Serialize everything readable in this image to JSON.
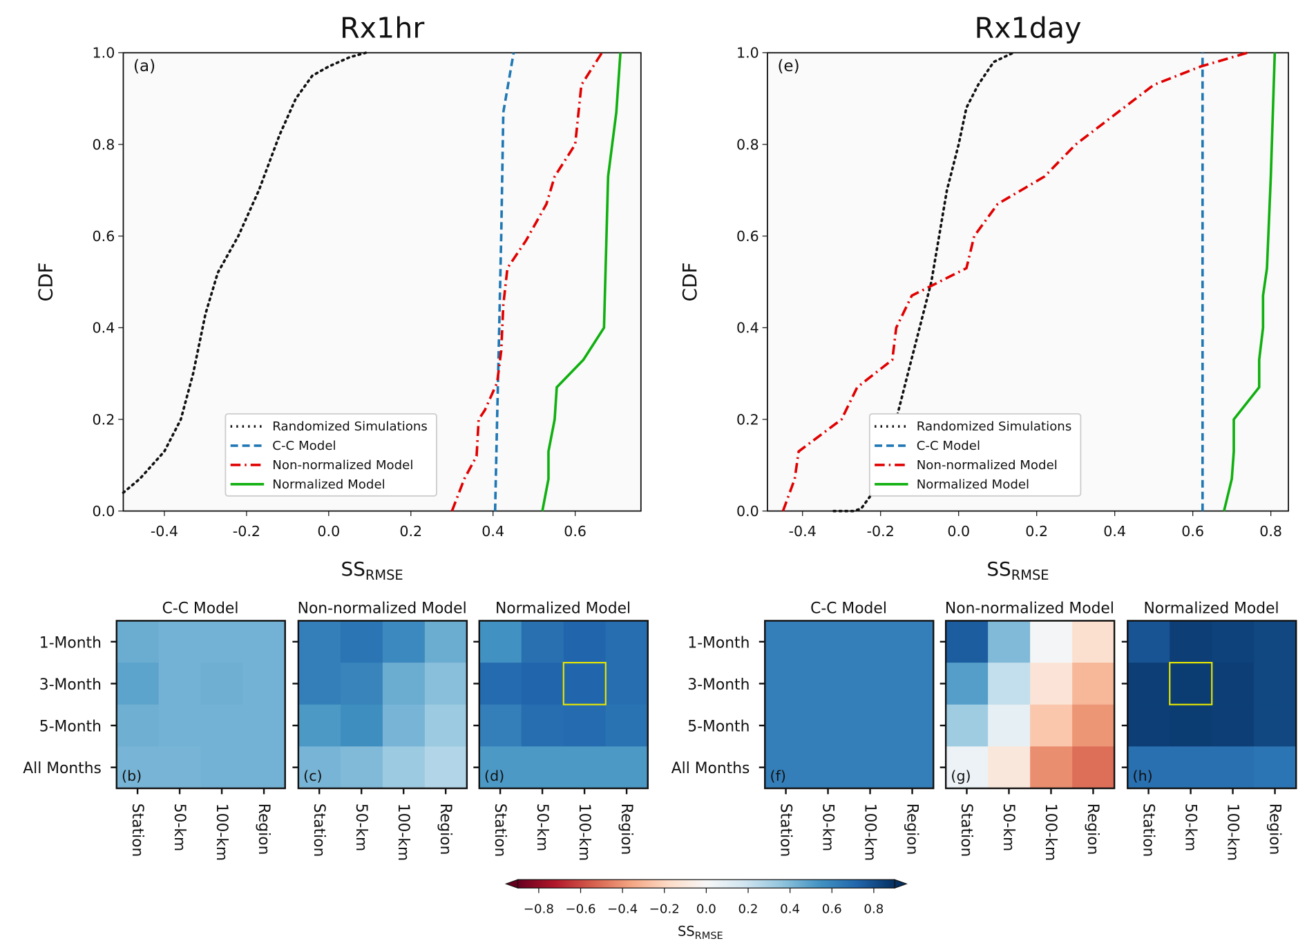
{
  "colors": {
    "Randomized Simulations": "#111111",
    "C-C Model": "#1f77b4",
    "Non-normalized Model": "#e00000",
    "Normalized Model": "#10b010",
    "highlight": "#e6e600",
    "axes_bg": "#fafafa"
  },
  "chart_data": [
    {
      "type": "line",
      "title": "Rx1hr",
      "panel_label": "(a)",
      "xlabel": "SS",
      "xlabel_sub": "RMSE",
      "ylabel": "CDF",
      "xlim": [
        -0.5,
        0.76
      ],
      "ylim": [
        0,
        1
      ],
      "xticks": [
        "-0.4",
        "-0.2",
        "0.0",
        "0.2",
        "0.4",
        "0.6"
      ],
      "yticks": [
        "0.0",
        "0.2",
        "0.4",
        "0.6",
        "0.8",
        "1.0"
      ],
      "legend": "lower-center",
      "series": [
        {
          "name": "Randomized Simulations",
          "style": "dotted",
          "points": [
            [
              -0.5,
              0.04
            ],
            [
              -0.46,
              0.07
            ],
            [
              -0.4,
              0.13
            ],
            [
              -0.36,
              0.2
            ],
            [
              -0.33,
              0.3
            ],
            [
              -0.3,
              0.43
            ],
            [
              -0.27,
              0.52
            ],
            [
              -0.22,
              0.6
            ],
            [
              -0.17,
              0.7
            ],
            [
              -0.12,
              0.82
            ],
            [
              -0.08,
              0.9
            ],
            [
              -0.04,
              0.95
            ],
            [
              0.0,
              0.97
            ],
            [
              0.05,
              0.99
            ],
            [
              0.09,
              1.0
            ]
          ]
        },
        {
          "name": "C-C Model",
          "style": "dashed",
          "points": [
            [
              0.405,
              0
            ],
            [
              0.41,
              0.2
            ],
            [
              0.415,
              0.4
            ],
            [
              0.42,
              0.6
            ],
            [
              0.425,
              0.87
            ],
            [
              0.45,
              1.0
            ]
          ]
        },
        {
          "name": "Non-normalized Model",
          "style": "dashdot",
          "points": [
            [
              0.3,
              0
            ],
            [
              0.33,
              0.07
            ],
            [
              0.36,
              0.12
            ],
            [
              0.365,
              0.2
            ],
            [
              0.38,
              0.22
            ],
            [
              0.41,
              0.28
            ],
            [
              0.42,
              0.35
            ],
            [
              0.425,
              0.45
            ],
            [
              0.435,
              0.53
            ],
            [
              0.48,
              0.59
            ],
            [
              0.53,
              0.67
            ],
            [
              0.55,
              0.73
            ],
            [
              0.6,
              0.8
            ],
            [
              0.615,
              0.93
            ],
            [
              0.665,
              1.0
            ]
          ]
        },
        {
          "name": "Normalized Model",
          "style": "solid",
          "points": [
            [
              0.52,
              0
            ],
            [
              0.535,
              0.07
            ],
            [
              0.535,
              0.13
            ],
            [
              0.55,
              0.2
            ],
            [
              0.555,
              0.27
            ],
            [
              0.62,
              0.33
            ],
            [
              0.67,
              0.4
            ],
            [
              0.68,
              0.73
            ],
            [
              0.69,
              0.8
            ],
            [
              0.7,
              0.87
            ],
            [
              0.71,
              1.0
            ]
          ]
        }
      ]
    },
    {
      "type": "line",
      "title": "Rx1day",
      "panel_label": "(e)",
      "xlabel": "SS",
      "xlabel_sub": "RMSE",
      "ylabel": "CDF",
      "xlim": [
        -0.49,
        0.845
      ],
      "ylim": [
        0,
        1
      ],
      "xticks": [
        "-0.4",
        "-0.2",
        "0.0",
        "0.2",
        "0.4",
        "0.6",
        "0.8"
      ],
      "yticks": [
        "0.0",
        "0.2",
        "0.4",
        "0.6",
        "0.8",
        "1.0"
      ],
      "legend": "lower-center",
      "series": [
        {
          "name": "Randomized Simulations",
          "style": "dotted",
          "points": [
            [
              -0.32,
              0
            ],
            [
              -0.27,
              0
            ],
            [
              -0.25,
              0.005
            ],
            [
              -0.22,
              0.04
            ],
            [
              -0.19,
              0.1
            ],
            [
              -0.16,
              0.2
            ],
            [
              -0.13,
              0.3
            ],
            [
              -0.1,
              0.4
            ],
            [
              -0.07,
              0.5
            ],
            [
              -0.05,
              0.6
            ],
            [
              -0.03,
              0.7
            ],
            [
              0.0,
              0.8
            ],
            [
              0.02,
              0.88
            ],
            [
              0.05,
              0.93
            ],
            [
              0.09,
              0.98
            ],
            [
              0.14,
              1.0
            ]
          ]
        },
        {
          "name": "C-C Model",
          "style": "dashed",
          "points": [
            [
              0.625,
              0
            ],
            [
              0.625,
              1.0
            ]
          ]
        },
        {
          "name": "Non-normalized Model",
          "style": "dashdot",
          "points": [
            [
              -0.45,
              0
            ],
            [
              -0.42,
              0.07
            ],
            [
              -0.41,
              0.13
            ],
            [
              -0.3,
              0.2
            ],
            [
              -0.26,
              0.27
            ],
            [
              -0.17,
              0.33
            ],
            [
              -0.16,
              0.4
            ],
            [
              -0.12,
              0.47
            ],
            [
              -0.05,
              0.5
            ],
            [
              0.02,
              0.53
            ],
            [
              0.04,
              0.6
            ],
            [
              0.1,
              0.67
            ],
            [
              0.22,
              0.73
            ],
            [
              0.3,
              0.8
            ],
            [
              0.5,
              0.93
            ],
            [
              0.62,
              0.97
            ],
            [
              0.74,
              1.0
            ]
          ]
        },
        {
          "name": "Normalized Model",
          "style": "solid",
          "points": [
            [
              0.68,
              0
            ],
            [
              0.7,
              0.07
            ],
            [
              0.705,
              0.13
            ],
            [
              0.705,
              0.2
            ],
            [
              0.77,
              0.27
            ],
            [
              0.77,
              0.33
            ],
            [
              0.78,
              0.4
            ],
            [
              0.78,
              0.47
            ],
            [
              0.79,
              0.53
            ],
            [
              0.8,
              0.73
            ],
            [
              0.81,
              1.0
            ]
          ]
        }
      ]
    },
    {
      "type": "heatmap",
      "rows": [
        "1-Month",
        "3-Month",
        "5-Month",
        "All Months"
      ],
      "cols": [
        "Station",
        "50-km",
        "100-km",
        "Region"
      ],
      "colormap": "RdBu",
      "vlim": [
        -0.9,
        0.9
      ],
      "panels": [
        {
          "title": "C-C Model",
          "label": "(b)",
          "values": [
            [
              0.45,
              0.43,
              0.43,
              0.43
            ],
            [
              0.48,
              0.43,
              0.44,
              0.43
            ],
            [
              0.44,
              0.43,
              0.43,
              0.43
            ],
            [
              0.42,
              0.42,
              0.43,
              0.43
            ]
          ]
        },
        {
          "title": "Non-normalized Model",
          "label": "(c)",
          "values": [
            [
              0.62,
              0.66,
              0.58,
              0.45
            ],
            [
              0.62,
              0.6,
              0.45,
              0.38
            ],
            [
              0.52,
              0.56,
              0.42,
              0.33
            ],
            [
              0.42,
              0.4,
              0.33,
              0.27
            ]
          ]
        },
        {
          "title": "Normalized Model",
          "label": "(d)",
          "highlight": [
            1,
            2
          ],
          "values": [
            [
              0.55,
              0.68,
              0.72,
              0.69
            ],
            [
              0.7,
              0.72,
              0.72,
              0.69
            ],
            [
              0.62,
              0.69,
              0.7,
              0.67
            ],
            [
              0.52,
              0.52,
              0.52,
              0.52
            ]
          ]
        },
        {
          "title": "C-C Model",
          "label": "(f)",
          "values": [
            [
              0.62,
              0.62,
              0.62,
              0.62
            ],
            [
              0.62,
              0.62,
              0.62,
              0.62
            ],
            [
              0.62,
              0.62,
              0.62,
              0.62
            ],
            [
              0.62,
              0.62,
              0.62,
              0.62
            ]
          ]
        },
        {
          "title": "Non-normalized Model",
          "label": "(g)",
          "values": [
            [
              0.75,
              0.4,
              0.02,
              -0.15
            ],
            [
              0.5,
              0.22,
              -0.12,
              -0.3
            ],
            [
              0.32,
              0.08,
              -0.25,
              -0.4
            ],
            [
              0.05,
              -0.1,
              -0.42,
              -0.5
            ]
          ]
        },
        {
          "title": "Normalized Model",
          "label": "(h)",
          "highlight": [
            1,
            1
          ],
          "values": [
            [
              0.78,
              0.85,
              0.84,
              0.82
            ],
            [
              0.85,
              0.86,
              0.85,
              0.82
            ],
            [
              0.85,
              0.86,
              0.85,
              0.82
            ],
            [
              0.68,
              0.68,
              0.68,
              0.66
            ]
          ]
        }
      ],
      "colorbar": {
        "label": "SS",
        "label_sub": "RMSE",
        "ticks": [
          "−0.8",
          "−0.6",
          "−0.4",
          "−0.2",
          "0.0",
          "0.2",
          "0.4",
          "0.6",
          "0.8"
        ],
        "tick_values": [
          -0.8,
          -0.6,
          -0.4,
          -0.2,
          0,
          0.2,
          0.4,
          0.6,
          0.8
        ],
        "extend": "both"
      }
    }
  ]
}
